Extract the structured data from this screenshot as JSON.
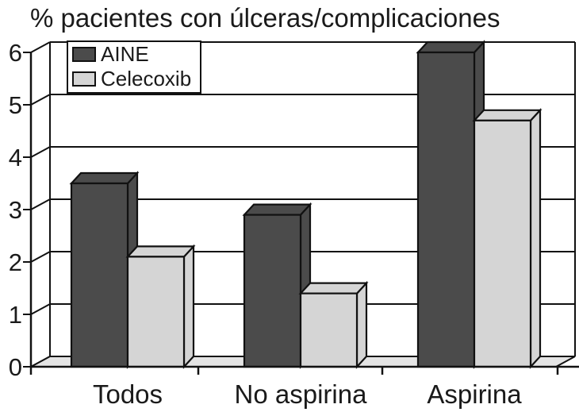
{
  "colors": {
    "aine": "#4b4b4b",
    "celecoxib": "#d5d5d5",
    "floor": "#e4e4e4",
    "line": "#111111",
    "text": "#1a1a1a",
    "background": "#ffffff"
  },
  "chart_data": {
    "type": "bar",
    "projection": "3d",
    "title": "% pacientes con úlceras/complicaciones",
    "categories": [
      "Todos",
      "No aspirina",
      "Aspirina"
    ],
    "series": [
      {
        "name": "AINE",
        "color": "#4b4b4b",
        "values": [
          3.5,
          2.9,
          6.0
        ]
      },
      {
        "name": "Celecoxib",
        "color": "#d5d5d5",
        "values": [
          2.1,
          1.4,
          4.7
        ]
      }
    ],
    "xlabel": "",
    "ylabel": "",
    "ylim": [
      0,
      6
    ],
    "ytick_step": 1,
    "yticks": [
      "0",
      "1",
      "2",
      "3",
      "4",
      "5",
      "6"
    ],
    "grid": true,
    "legend_position": "top-left"
  }
}
